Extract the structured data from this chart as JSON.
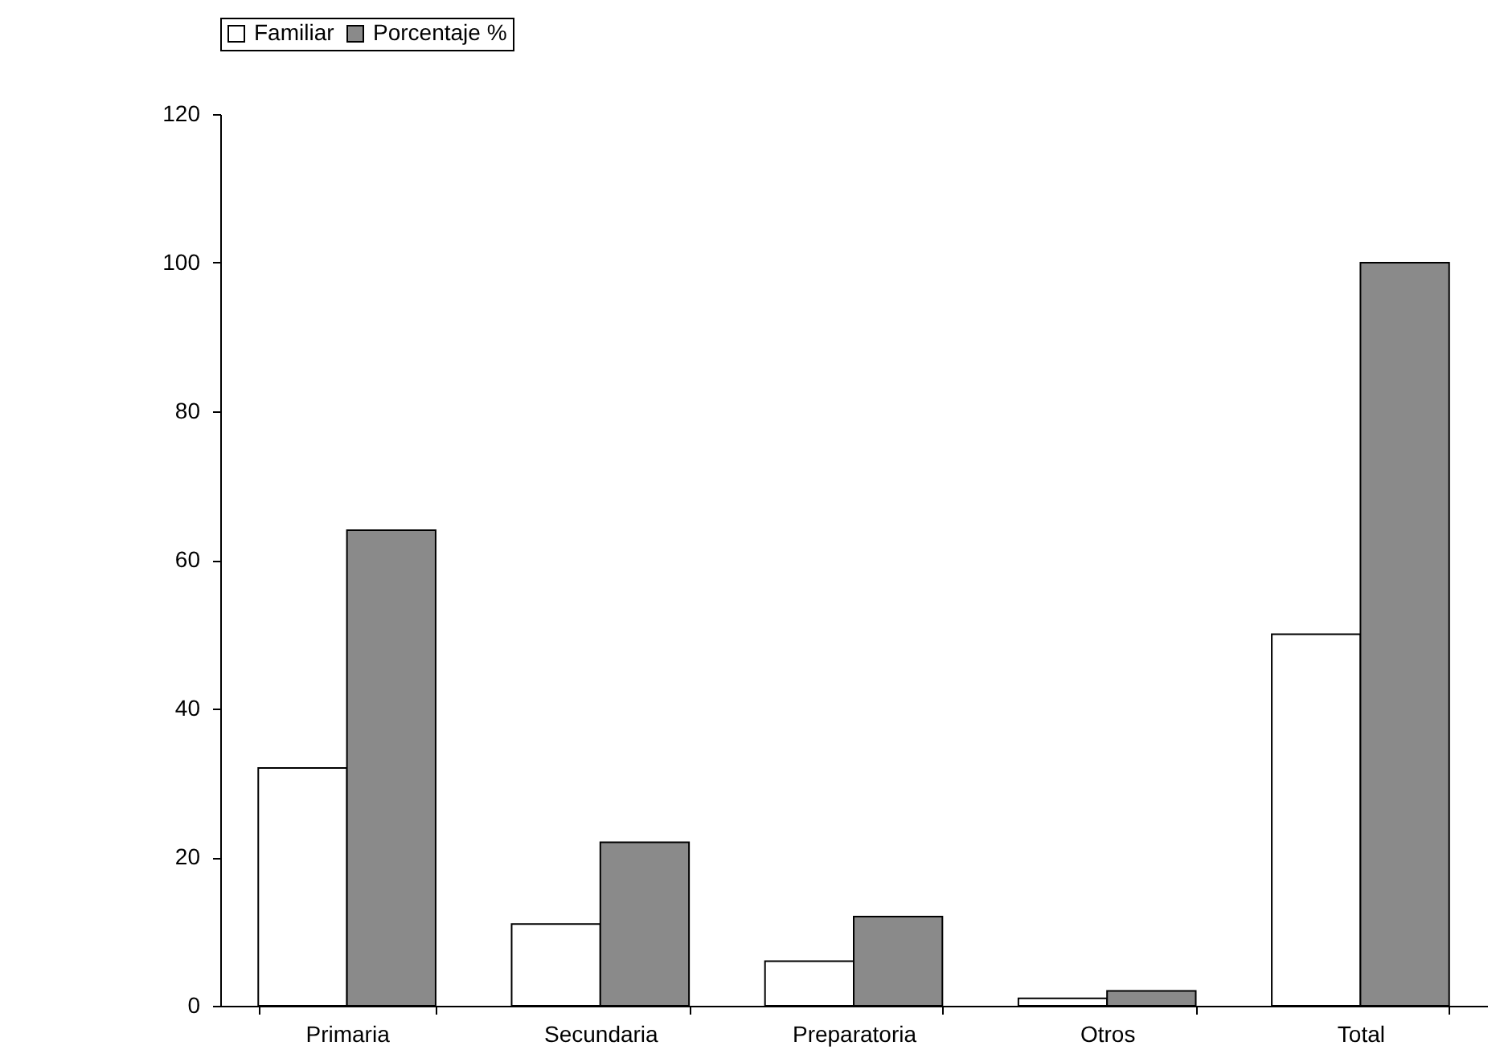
{
  "chart_data": {
    "type": "bar",
    "categories": [
      "Primaria",
      "Secundaria",
      "Preparatoria",
      "Otros",
      "Total"
    ],
    "series": [
      {
        "name": "Familiar",
        "color": "#ffffff",
        "values": [
          32,
          11,
          6,
          1,
          50
        ]
      },
      {
        "name": "Porcentaje %",
        "color": "#8a8a8a",
        "values": [
          64,
          22,
          12,
          2,
          100
        ]
      }
    ],
    "ylim": [
      0,
      120
    ],
    "yticks": [
      0,
      20,
      40,
      60,
      80,
      100,
      120
    ],
    "grid": false,
    "legend": "top"
  }
}
